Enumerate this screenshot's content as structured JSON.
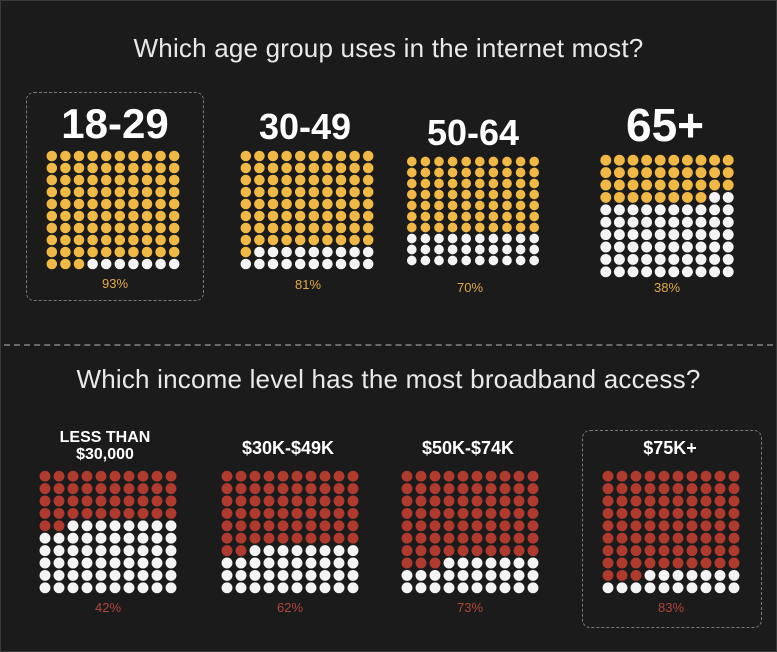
{
  "colors": {
    "age_fill": "#f0b845",
    "income_fill": "#b03a2e",
    "empty_dot": "#f4f4f4",
    "background": "#1b1b1b"
  },
  "top": {
    "title": "Which age group uses in the internet most?",
    "groups": [
      {
        "label": "18-29",
        "pct_text": "93%"
      },
      {
        "label": "30-49",
        "pct_text": "81%"
      },
      {
        "label": "50-64",
        "pct_text": "70%"
      },
      {
        "label": "65+",
        "pct_text": "38%"
      }
    ]
  },
  "bottom": {
    "title": "Which income level has the most broadband access?",
    "groups": [
      {
        "label_line1": "LESS THAN",
        "label_line2": "$30,000",
        "pct_text": "42%"
      },
      {
        "label": "$30K-$49K",
        "pct_text": "62%"
      },
      {
        "label": "$50K-$74K",
        "pct_text": "73%"
      },
      {
        "label": "$75K+",
        "pct_text": "83%"
      }
    ]
  },
  "chart_data": [
    {
      "type": "waffle",
      "title": "Which age group uses in the internet most?",
      "categories": [
        "18-29",
        "30-49",
        "50-64",
        "65+"
      ],
      "values": [
        93,
        81,
        70,
        38
      ],
      "highlighted": "18-29"
    },
    {
      "type": "waffle",
      "title": "Which income level has the most broadband access?",
      "categories": [
        "LESS THAN $30,000",
        "$30K-$49K",
        "$50K-$74K",
        "$75K+"
      ],
      "values": [
        42,
        62,
        73,
        83
      ],
      "highlighted": "$75K+"
    }
  ]
}
